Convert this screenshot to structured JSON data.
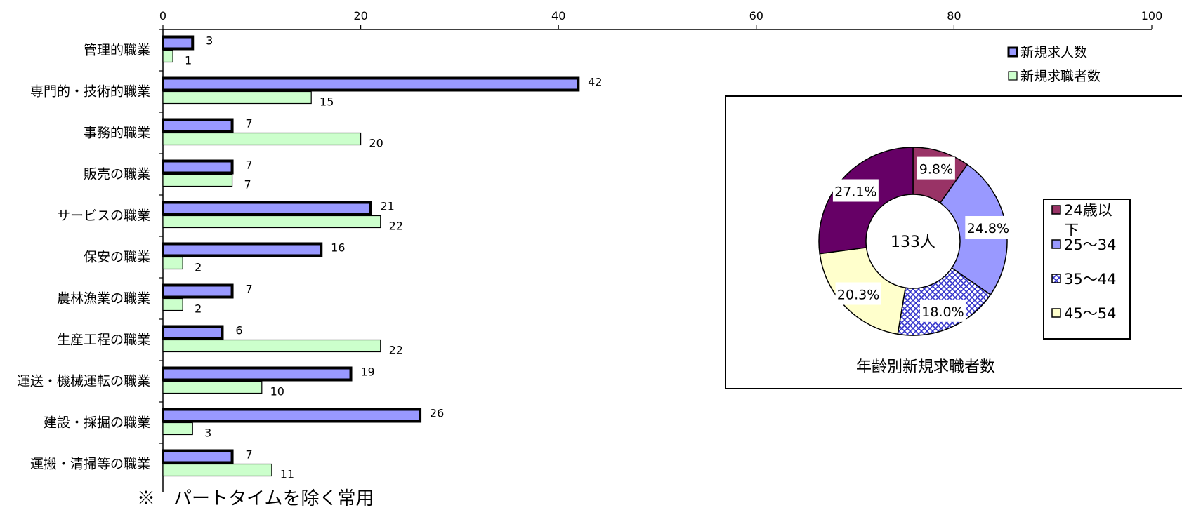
{
  "chart_data": [
    {
      "type": "bar",
      "orientation": "horizontal",
      "title": "",
      "xlim": [
        0,
        100
      ],
      "x_ticks": [
        0,
        20,
        40,
        60,
        80,
        100
      ],
      "categories": [
        "管理的職業",
        "専門的・技術的職業",
        "事務的職業",
        "販売の職業",
        "サービスの職業",
        "保安の職業",
        "農林漁業の職業",
        "生産工程の職業",
        "運送・機械運転の職業",
        "建設・採掘の職業",
        "運搬・清掃等の職業"
      ],
      "series": [
        {
          "name": "新規求人数",
          "values": [
            3,
            42,
            7,
            7,
            21,
            16,
            7,
            6,
            19,
            26,
            7
          ],
          "color": "#9999FF"
        },
        {
          "name": "新規求職者数",
          "values": [
            1,
            15,
            20,
            7,
            22,
            2,
            2,
            22,
            10,
            3,
            11
          ],
          "color": "#CCFFCC"
        }
      ],
      "legend": "top-right",
      "grid": false
    },
    {
      "type": "pie",
      "style": "donut",
      "title": "年齢別新規求職者数",
      "center_label": "133人",
      "slices": [
        {
          "label": "24歳以下",
          "value": 9.8,
          "text": "9.8%",
          "color": "#993366"
        },
        {
          "label": "25～34",
          "value": 24.8,
          "text": "24.8%",
          "color": "#9999FF"
        },
        {
          "label": "35～44",
          "value": 18.0,
          "text": "18.0%",
          "color": "#3333CC",
          "pattern": "crosshatch"
        },
        {
          "label": "45～54",
          "value": 20.3,
          "text": "20.3%",
          "color": "#FFFFCC"
        },
        {
          "label": "",
          "value": 27.1,
          "text": "27.1%",
          "color": "#660066"
        }
      ],
      "legend_entries": [
        "24歳以下",
        "25～34",
        "35～44",
        "45～54"
      ],
      "legend": "right"
    }
  ],
  "footnote": "※　パートタイムを除く常用"
}
